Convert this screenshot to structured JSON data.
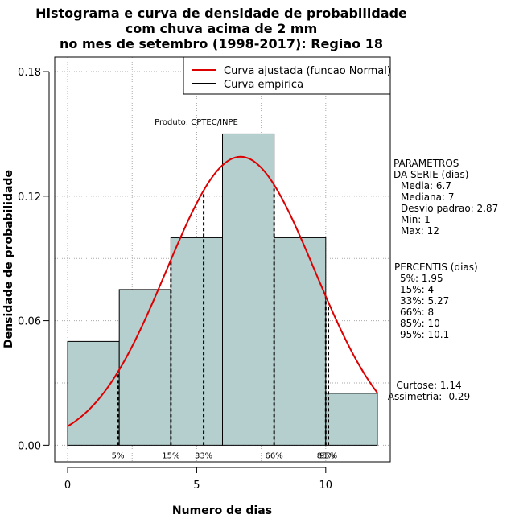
{
  "chart_data": {
    "type": "bar",
    "title_lines": [
      "Histograma e curva de densidade de probabilidade",
      "com chuva acima de 2 mm",
      "no mes de setembro (1998-2017): Regiao 18"
    ],
    "xlabel": "Numero de dias",
    "ylabel": "Densidade de probabilidade",
    "xlim": [
      -0.5,
      12.5
    ],
    "ylim": [
      -0.008,
      0.187
    ],
    "x_ticks": [
      0,
      5,
      10
    ],
    "y_ticks": [
      0.0,
      0.06,
      0.12,
      0.18
    ],
    "y_tick_labels": [
      "0.00",
      "0.06",
      "0.12",
      "0.18"
    ],
    "bins": [
      {
        "start": 0,
        "end": 2,
        "value": 0.05
      },
      {
        "start": 2,
        "end": 4,
        "value": 0.075
      },
      {
        "start": 4,
        "end": 6,
        "value": 0.1
      },
      {
        "start": 6,
        "end": 8,
        "value": 0.15
      },
      {
        "start": 8,
        "end": 10,
        "value": 0.1
      },
      {
        "start": 10,
        "end": 12,
        "value": 0.025
      }
    ],
    "bar_color": "#b5cece",
    "curve_color": "#dd0000",
    "normal_fit": {
      "mean": 6.7,
      "sd": 2.87,
      "x_from": 0,
      "x_to": 12
    },
    "percentile_lines": [
      {
        "label": "5%",
        "x": 1.95
      },
      {
        "label": "15%",
        "x": 4
      },
      {
        "label": "33%",
        "x": 5.27
      },
      {
        "label": "66%",
        "x": 8
      },
      {
        "label": "85%",
        "x": 10
      },
      {
        "label": "95%",
        "x": 10.1
      }
    ],
    "legend": [
      {
        "label": "Curva ajustada (funcao Normal)",
        "color": "#dd0000"
      },
      {
        "label": "Curva empirica",
        "color": "#000000"
      }
    ],
    "legend_position": "top-right",
    "annotation": "Produto: CPTEC/INPE",
    "parametros": {
      "heading": [
        "PARAMETROS",
        "DA SERIE (dias)"
      ],
      "lines": [
        "Media: 6.7",
        "Mediana: 7",
        "Desvio padrao: 2.87",
        "Min: 1",
        "Max: 12"
      ]
    },
    "percentis": {
      "heading": "PERCENTIS (dias)",
      "lines": [
        "5%: 1.95",
        "15%: 4",
        "33%: 5.27",
        "66%: 8",
        "85%: 10",
        "95%: 10.1"
      ]
    },
    "stats": [
      "Curtose: 1.14",
      "Assimetria: -0.29"
    ]
  }
}
